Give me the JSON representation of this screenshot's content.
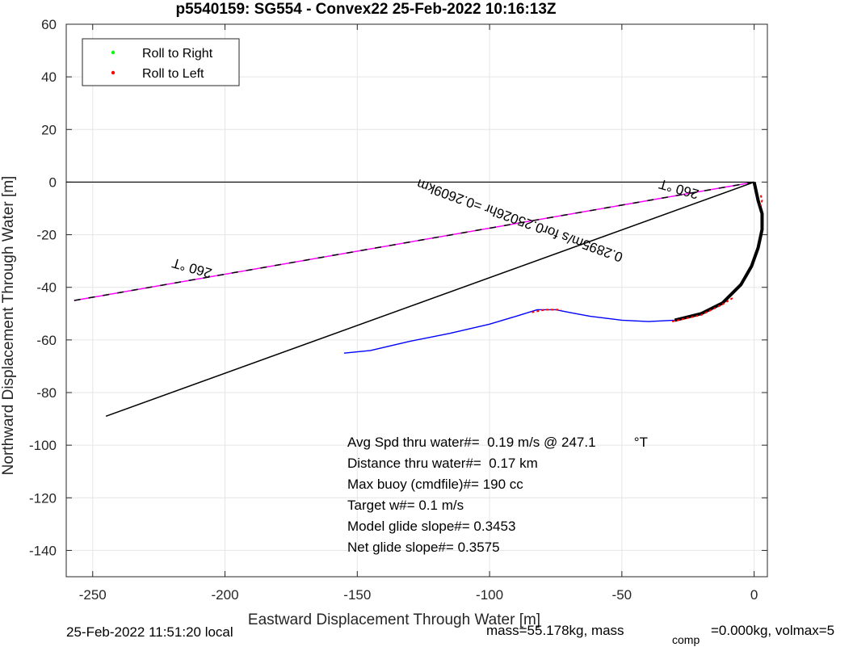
{
  "chart_data": {
    "type": "line",
    "title": "p5540159: SG554 - Convex22 25-Feb-2022 10:16:13Z",
    "xlabel": "Eastward Displacement Through Water [m]",
    "ylabel": "Northward Displacement Through Water [m]",
    "xlim": [
      -260,
      5
    ],
    "ylim": [
      -150,
      60
    ],
    "xticks": [
      -250,
      -200,
      -150,
      -100,
      -50,
      0
    ],
    "yticks": [
      60,
      40,
      20,
      0,
      -20,
      -40,
      -60,
      -80,
      -100,
      -120,
      -140
    ],
    "grid": true,
    "legend": {
      "position": "top-left",
      "entries": [
        {
          "label": "Roll to Right",
          "color": "#00ff00"
        },
        {
          "label": "Roll to Left",
          "color": "#ff0000"
        }
      ]
    },
    "colors": {
      "track": "#0000ff",
      "heading": "#ff00ff",
      "line": "#000000",
      "roll_left": "#ff0000"
    },
    "series": [
      {
        "kind": "track",
        "x": [
          -155,
          -145,
          -130,
          -115,
          -100,
          -90,
          -82,
          -75,
          -70,
          -62,
          -50,
          -40,
          -30,
          -20,
          -12,
          -5,
          -1,
          1.5,
          3,
          3,
          1.5,
          0
        ],
        "y": [
          -65,
          -64,
          -60.5,
          -57.5,
          -54,
          -51,
          -48.5,
          -48.5,
          -49.5,
          -51,
          -52.5,
          -53,
          -52.5,
          -50,
          -46,
          -39,
          -32,
          -25,
          -18,
          -12,
          -7,
          0
        ]
      },
      {
        "kind": "heading",
        "x": [
          -257,
          0
        ],
        "y": [
          -45,
          0
        ]
      },
      {
        "kind": "current",
        "x": [
          -245,
          0
        ],
        "y": [
          -89,
          0
        ]
      },
      {
        "kind": "zero",
        "x": [
          -260,
          0
        ],
        "y": [
          0,
          0
        ]
      }
    ],
    "roll_left_segments": [
      {
        "x": [
          -84,
          -79,
          -73
        ],
        "y": [
          -49.5,
          -48.5,
          -48.5
        ]
      },
      {
        "x": [
          -31,
          -20,
          -12,
          -8
        ],
        "y": [
          -53,
          -50.5,
          -46.5,
          -44
        ]
      },
      {
        "x": [
          2.5,
          3,
          2.5
        ],
        "y": [
          -5,
          -7,
          -9
        ]
      }
    ],
    "annotations": [
      {
        "text": "260 °T",
        "x": -212,
        "y": -31
      },
      {
        "text": "260 °T",
        "x": -28,
        "y": -1
      },
      {
        "text": "0.2895m/s for0.25026hr =0.2609km",
        "x": -88,
        "y": -13
      }
    ]
  },
  "stats": [
    "Avg Spd thru water#=  0.19 m/s @ 247.1          °T",
    "Distance thru water#=  0.17 km",
    "Max buoy (cmdfile)#= 190 cc",
    "Target w#= 0.1 m/s",
    "Model glide slope#= 0.3453",
    "Net glide slope#= 0.3575"
  ],
  "footer": {
    "local_time": "25-Feb-2022 11:51:20 local",
    "mass_text": "mass=55.178kg, mass",
    "comp_sub": "comp",
    "comp_rest": "=0.000kg, volmax=5"
  }
}
